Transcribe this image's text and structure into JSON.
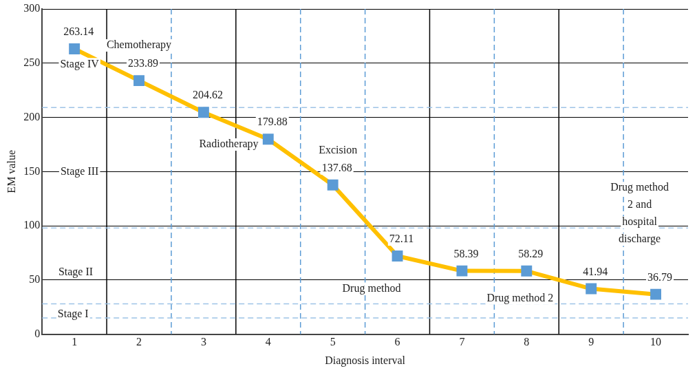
{
  "chart_data": {
    "type": "line",
    "xlabel": "Diagnosis interval",
    "ylabel": "EM value",
    "x": [
      1,
      2,
      3,
      4,
      5,
      6,
      7,
      8,
      9,
      10
    ],
    "series": [
      {
        "color": "#ffc000",
        "values": [
          263.14,
          233.89,
          204.62,
          179.88,
          137.68,
          72.11,
          58.39,
          58.29,
          41.94,
          36.79
        ]
      }
    ],
    "xlim": [
      0.5,
      10.5
    ],
    "xticks": [
      1,
      2,
      3,
      4,
      5,
      6,
      7,
      8,
      9,
      10
    ],
    "ylim": [
      0,
      300
    ],
    "yticks": [
      0,
      50,
      100,
      150,
      200,
      250,
      300
    ],
    "grid": "y",
    "marker": "square",
    "line_style": "solid",
    "data_labels": true,
    "legend": false,
    "ref_lines": [
      {
        "axis": "x",
        "value": 1.5,
        "color": "#000000",
        "line_style": "solid"
      },
      {
        "axis": "x",
        "value": 3.5,
        "color": "#000000",
        "line_style": "solid"
      },
      {
        "axis": "x",
        "value": 6.5,
        "color": "#000000",
        "line_style": "solid"
      },
      {
        "axis": "x",
        "value": 8.5,
        "color": "#000000",
        "line_style": "solid"
      },
      {
        "axis": "x",
        "value": 2.5,
        "color": "#5b9bd5",
        "line_style": "dashed"
      },
      {
        "axis": "x",
        "value": 4.5,
        "color": "#5b9bd5",
        "line_style": "dashed"
      },
      {
        "axis": "x",
        "value": 5.5,
        "color": "#5b9bd5",
        "line_style": "dashed"
      },
      {
        "axis": "x",
        "value": 7.5,
        "color": "#5b9bd5",
        "line_style": "dashed"
      },
      {
        "axis": "x",
        "value": 9.5,
        "color": "#5b9bd5",
        "line_style": "dashed"
      },
      {
        "axis": "y",
        "value": 209,
        "color": "#9dc3e6",
        "line_style": "dashed"
      },
      {
        "axis": "y",
        "value": 98,
        "color": "#9dc3e6",
        "line_style": "dashed"
      },
      {
        "axis": "y",
        "value": 28,
        "color": "#9dc3e6",
        "line_style": "dashed"
      },
      {
        "axis": "y",
        "value": 15,
        "color": "#9dc3e6",
        "line_style": "dashed"
      }
    ],
    "annotations": [
      "Chemotherapy",
      "Radiotherapy",
      "Excision",
      "Drug method",
      "Drug method 2",
      "Drug method\n2 and\nhospital\ndischarge",
      "Stage IV",
      "Stage III",
      "Stage II",
      "Stage I"
    ]
  }
}
